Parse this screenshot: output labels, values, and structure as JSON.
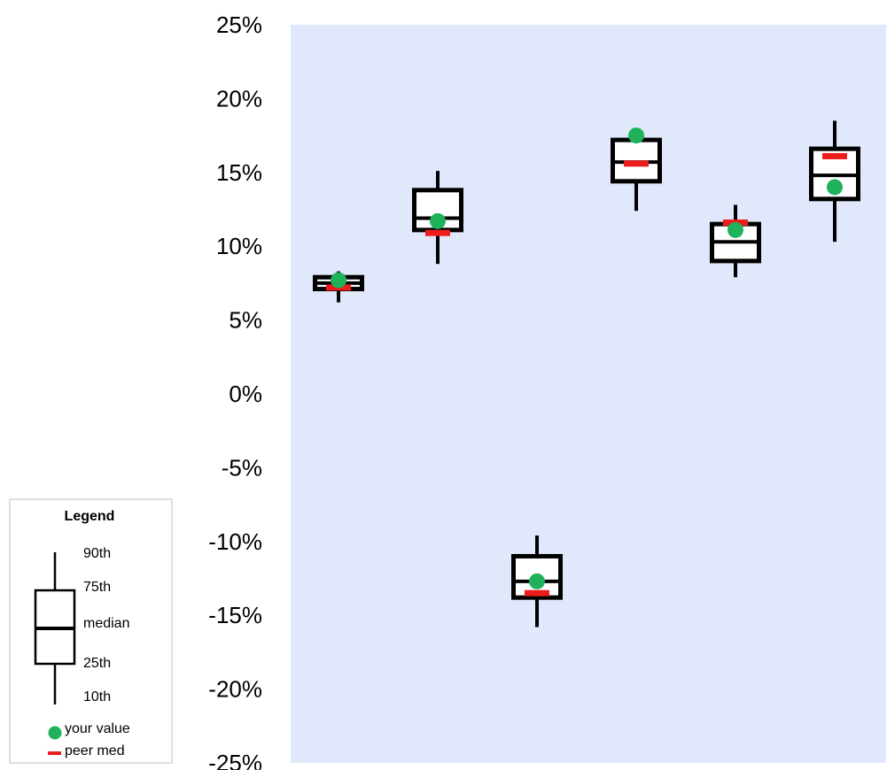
{
  "chart_data": {
    "type": "box",
    "ylim": [
      -0.25,
      0.25
    ],
    "yticks": [
      0.25,
      0.2,
      0.15,
      0.1,
      0.05,
      0.0,
      -0.05,
      -0.1,
      -0.15,
      -0.2,
      -0.25
    ],
    "ytick_labels": [
      "25%",
      "20%",
      "15%",
      "10%",
      "5%",
      "0%",
      "-5%",
      "-10%",
      "-15%",
      "-20%",
      "-25%"
    ],
    "grid": false,
    "plot_background": "#e1e8fb",
    "box_color": "#000000",
    "your_value_color": "#1fb25a",
    "peer_median_color": "#ee1c1c",
    "boxes": [
      {
        "p10": 0.062,
        "p25": 0.071,
        "median": 0.075,
        "p75": 0.079,
        "p90": 0.083,
        "your_value": 0.077,
        "peer_median": 0.072
      },
      {
        "p10": 0.088,
        "p25": 0.111,
        "median": 0.119,
        "p75": 0.138,
        "p90": 0.151,
        "your_value": 0.117,
        "peer_median": 0.109
      },
      {
        "p10": -0.158,
        "p25": -0.138,
        "median": -0.127,
        "p75": -0.11,
        "p90": -0.096,
        "your_value": -0.127,
        "peer_median": -0.135
      },
      {
        "p10": 0.124,
        "p25": 0.144,
        "median": 0.157,
        "p75": 0.172,
        "p90": 0.18,
        "your_value": 0.175,
        "peer_median": 0.156
      },
      {
        "p10": 0.079,
        "p25": 0.09,
        "median": 0.103,
        "p75": 0.115,
        "p90": 0.128,
        "your_value": 0.111,
        "peer_median": 0.116
      },
      {
        "p10": 0.103,
        "p25": 0.132,
        "median": 0.148,
        "p75": 0.166,
        "p90": 0.185,
        "your_value": 0.14,
        "peer_median": 0.161
      }
    ]
  },
  "legend": {
    "title": "Legend",
    "p90": "90th",
    "p75": "75th",
    "median": "median",
    "p25": "25th",
    "p10": "10th",
    "your_value": "your value",
    "peer_median": "peer med"
  }
}
